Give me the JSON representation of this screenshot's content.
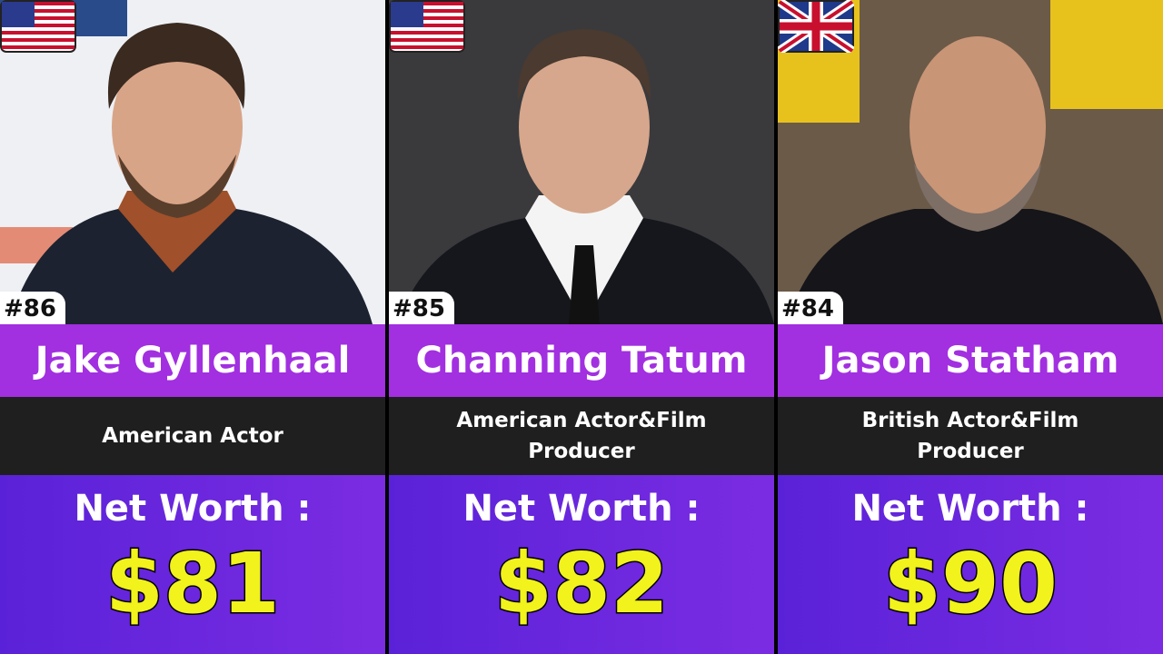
{
  "cards": [
    {
      "rank": "#86",
      "name": "Jake Gyllenhaal",
      "description": "American Actor",
      "label": "Net Worth :",
      "value": "$81"
    },
    {
      "rank": "#85",
      "name": "Channing Tatum",
      "description": "American Actor&Film Producer",
      "label": "Net Worth :",
      "value": "$82"
    },
    {
      "rank": "#84",
      "name": "Jason Statham",
      "description": "British Actor&Film Producer",
      "label": "Net Worth :",
      "value": "$90"
    }
  ]
}
